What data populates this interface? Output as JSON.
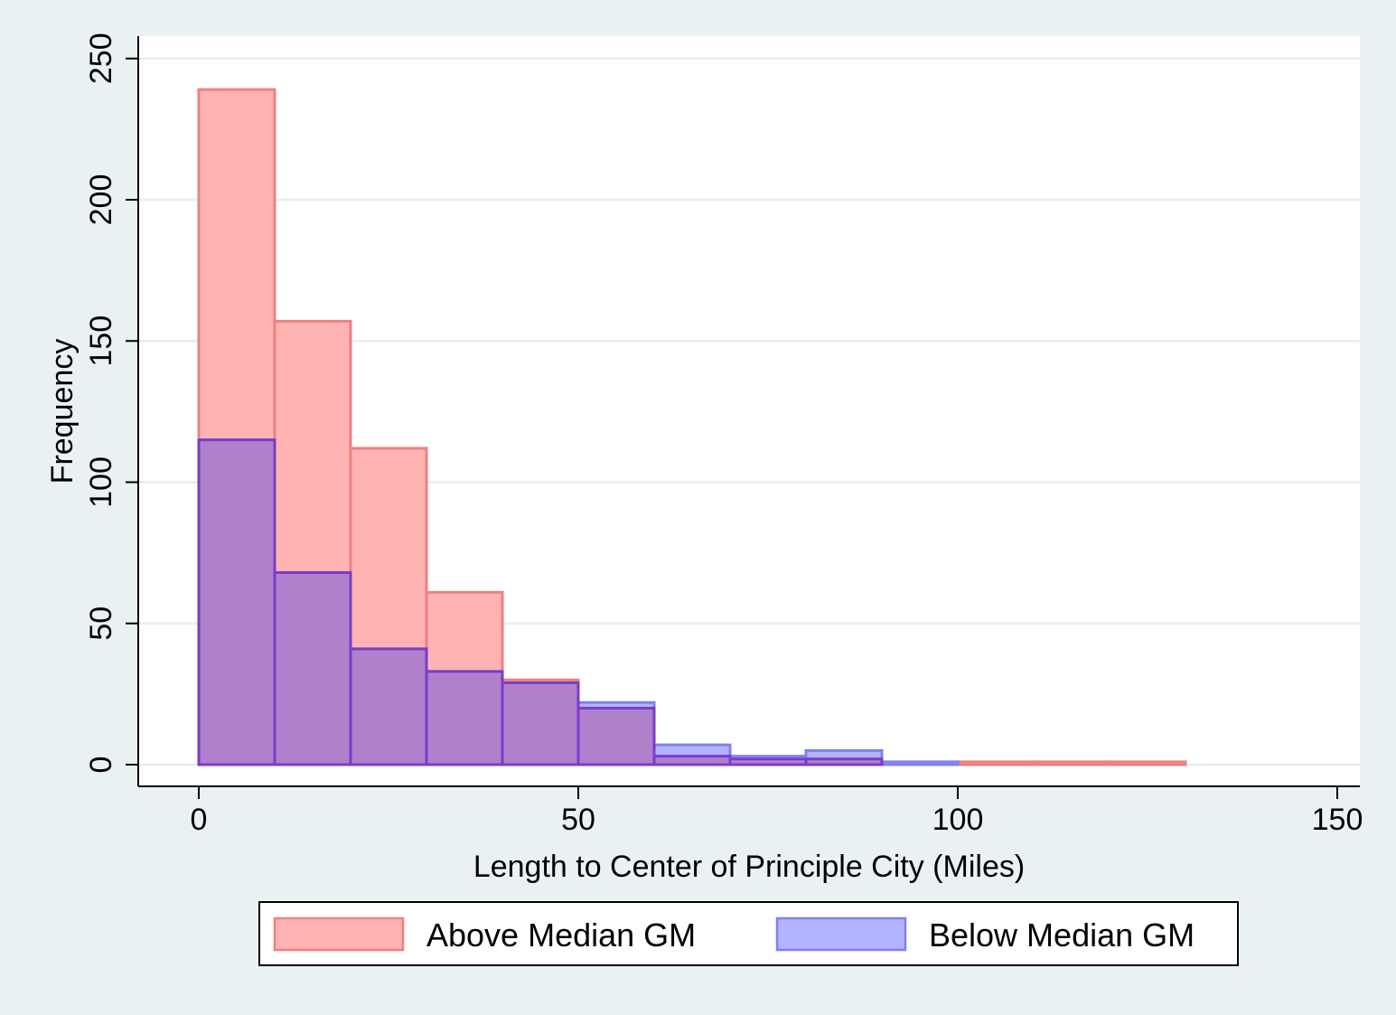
{
  "chart_data": {
    "type": "bar",
    "subtype": "overlaid-histogram",
    "title": "",
    "xlabel": "Length to Center of Principle City (Miles)",
    "ylabel": "Frequency",
    "xlim": [
      -8,
      153
    ],
    "ylim": [
      -8,
      258
    ],
    "xticks": [
      0,
      50,
      100,
      150
    ],
    "yticks": [
      0,
      50,
      100,
      150,
      200,
      250
    ],
    "x_tick_labels": [
      "0",
      "50",
      "100",
      "150"
    ],
    "y_tick_labels": [
      "0",
      "50",
      "100",
      "150",
      "200",
      "250"
    ],
    "grid": "horizontal",
    "legend_position": "bottom",
    "bin_width": 10,
    "bins": [
      [
        0,
        10
      ],
      [
        10,
        20
      ],
      [
        20,
        30
      ],
      [
        30,
        40
      ],
      [
        40,
        50
      ],
      [
        50,
        60
      ],
      [
        60,
        70
      ],
      [
        70,
        80
      ],
      [
        80,
        90
      ],
      [
        90,
        100
      ],
      [
        100,
        110
      ],
      [
        110,
        120
      ],
      [
        120,
        130
      ]
    ],
    "series": [
      {
        "name": "Above Median GM",
        "fill": "#ffb3b3",
        "stroke": "#f08080",
        "values": [
          239,
          157,
          112,
          61,
          30,
          20,
          3,
          2,
          2,
          0,
          1,
          1,
          1
        ]
      },
      {
        "name": "Below Median GM",
        "fill": "#b3b3ff",
        "stroke": "#8080f0",
        "values": [
          115,
          68,
          41,
          33,
          29,
          22,
          7,
          3,
          5,
          1,
          0,
          0,
          0
        ]
      }
    ],
    "overlap_fill": "#b080cc",
    "overlap_stroke": "#7a3cc8"
  },
  "colors": {
    "background": "#eaf1f3",
    "plot_background": "#ffffff",
    "grid": "#e8eef0",
    "axis": "#000000"
  }
}
